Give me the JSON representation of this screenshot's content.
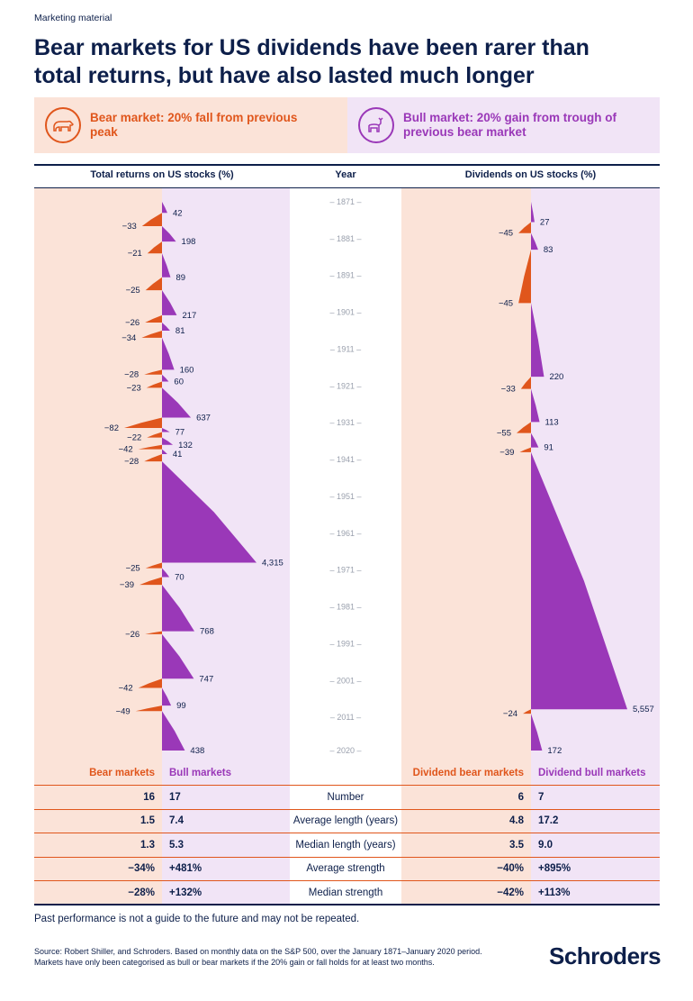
{
  "tag": "Marketing material",
  "title_line1": "Bear markets for US dividends have been rarer than",
  "title_line2": "total returns, but have also lasted much longer",
  "legend": {
    "bear": "Bear market: 20% fall from previous peak",
    "bull": "Bull market: 20% gain from trough of previous bear market"
  },
  "colors": {
    "bear": "#e0561c",
    "bull": "#9a38b8",
    "bear_bg": "#fbe3d8",
    "bull_bg": "#f1e4f6",
    "navy": "#0d1f4a"
  },
  "chart_data": {
    "type": "area",
    "year_axis_label": "Year",
    "year_ticks": [
      "1871",
      "1881",
      "1891",
      "1901",
      "1911",
      "1921",
      "1931",
      "1941",
      "1951",
      "1961",
      "1971",
      "1981",
      "1991",
      "2001",
      "2011",
      "2020"
    ],
    "panels": [
      {
        "name": "Total returns on US stocks (%)",
        "markets": [
          {
            "kind": "bull",
            "value": 42,
            "start": 1871.0,
            "end": 1874.0
          },
          {
            "kind": "bear",
            "value": -33,
            "start": 1874.0,
            "end": 1877.6
          },
          {
            "kind": "bull",
            "value": 198,
            "start": 1877.6,
            "end": 1881.8
          },
          {
            "kind": "bear",
            "value": -21,
            "start": 1881.8,
            "end": 1885.0
          },
          {
            "kind": "bull",
            "value": 89,
            "start": 1885.0,
            "end": 1891.5
          },
          {
            "kind": "bear",
            "value": -25,
            "start": 1891.5,
            "end": 1895.0
          },
          {
            "kind": "bull",
            "value": 217,
            "start": 1895.0,
            "end": 1901.8
          },
          {
            "kind": "bear",
            "value": -26,
            "start": 1901.8,
            "end": 1903.8
          },
          {
            "kind": "bull",
            "value": 81,
            "start": 1903.8,
            "end": 1906.0
          },
          {
            "kind": "bear",
            "value": -34,
            "start": 1906.0,
            "end": 1907.9
          },
          {
            "kind": "bull",
            "value": 160,
            "start": 1907.9,
            "end": 1916.6
          },
          {
            "kind": "bear",
            "value": -28,
            "start": 1916.6,
            "end": 1917.9
          },
          {
            "kind": "bull",
            "value": 60,
            "start": 1917.9,
            "end": 1919.8
          },
          {
            "kind": "bear",
            "value": -23,
            "start": 1919.8,
            "end": 1921.5
          },
          {
            "kind": "bull",
            "value": 637,
            "start": 1921.5,
            "end": 1929.6
          },
          {
            "kind": "bear",
            "value": -82,
            "start": 1929.6,
            "end": 1932.4
          },
          {
            "kind": "bull",
            "value": 77,
            "start": 1932.4,
            "end": 1933.5
          },
          {
            "kind": "bear",
            "value": -22,
            "start": 1933.5,
            "end": 1935.0
          },
          {
            "kind": "bull",
            "value": 132,
            "start": 1935.0,
            "end": 1937.0
          },
          {
            "kind": "bear",
            "value": -42,
            "start": 1937.0,
            "end": 1938.2
          },
          {
            "kind": "bull",
            "value": 41,
            "start": 1938.2,
            "end": 1939.5
          },
          {
            "kind": "bear",
            "value": -28,
            "start": 1939.5,
            "end": 1941.5
          },
          {
            "kind": "bull",
            "value": 4315,
            "start": 1941.5,
            "end": 1969.0
          },
          {
            "kind": "bear",
            "value": -25,
            "start": 1969.0,
            "end": 1970.5
          },
          {
            "kind": "bull",
            "value": 70,
            "start": 1970.5,
            "end": 1972.9
          },
          {
            "kind": "bear",
            "value": -39,
            "start": 1972.9,
            "end": 1975.0
          },
          {
            "kind": "bull",
            "value": 768,
            "start": 1975.0,
            "end": 1987.6
          },
          {
            "kind": "bear",
            "value": -26,
            "start": 1987.6,
            "end": 1988.4
          },
          {
            "kind": "bull",
            "value": 747,
            "start": 1988.4,
            "end": 2000.5
          },
          {
            "kind": "bear",
            "value": -42,
            "start": 2000.5,
            "end": 2003.0
          },
          {
            "kind": "bull",
            "value": 99,
            "start": 2003.0,
            "end": 2007.8
          },
          {
            "kind": "bear",
            "value": -49,
            "start": 2007.8,
            "end": 2009.3
          },
          {
            "kind": "bull",
            "value": 438,
            "start": 2009.3,
            "end": 2020.0
          }
        ]
      },
      {
        "name": "Dividends on US stocks (%)",
        "markets": [
          {
            "kind": "bull",
            "value": 27,
            "start": 1871.0,
            "end": 1876.5
          },
          {
            "kind": "bear",
            "value": -45,
            "start": 1876.5,
            "end": 1879.5
          },
          {
            "kind": "bull",
            "value": 83,
            "start": 1879.5,
            "end": 1884.0
          },
          {
            "kind": "bear",
            "value": -45,
            "start": 1884.0,
            "end": 1898.5
          },
          {
            "kind": "bull",
            "value": 220,
            "start": 1898.5,
            "end": 1918.5
          },
          {
            "kind": "bear",
            "value": -33,
            "start": 1918.5,
            "end": 1921.8
          },
          {
            "kind": "bull",
            "value": 113,
            "start": 1921.8,
            "end": 1930.8
          },
          {
            "kind": "bear",
            "value": -55,
            "start": 1930.8,
            "end": 1933.8
          },
          {
            "kind": "bull",
            "value": 91,
            "start": 1933.8,
            "end": 1937.7
          },
          {
            "kind": "bear",
            "value": -39,
            "start": 1937.7,
            "end": 1939.0
          },
          {
            "kind": "bull",
            "value": 5557,
            "start": 1939.0,
            "end": 2008.8
          },
          {
            "kind": "bear",
            "value": -24,
            "start": 2008.8,
            "end": 2010.0
          },
          {
            "kind": "bull",
            "value": 172,
            "start": 2010.0,
            "end": 2020.0
          }
        ]
      }
    ]
  },
  "stats": {
    "headers": {
      "bear": "Bear markets",
      "bull": "Bull markets",
      "div_bear": "Dividend bear markets",
      "div_bull": "Dividend bull markets"
    },
    "rows": [
      {
        "label": "Number",
        "bear": "16",
        "bull": "17",
        "div_bear": "6",
        "div_bull": "7"
      },
      {
        "label": "Average length (years)",
        "bear": "1.5",
        "bull": "7.4",
        "div_bear": "4.8",
        "div_bull": "17.2"
      },
      {
        "label": "Median length (years)",
        "bear": "1.3",
        "bull": "5.3",
        "div_bear": "3.5",
        "div_bull": "9.0"
      },
      {
        "label": "Average strength",
        "bear": "−34%",
        "bull": "+481%",
        "div_bear": "−40%",
        "div_bull": "+895%"
      },
      {
        "label": "Median strength",
        "bear": "−28%",
        "bull": "+132%",
        "div_bear": "−42%",
        "div_bull": "+113%"
      }
    ]
  },
  "footnote": "Past performance is not a guide to the future and may not be repeated.",
  "source_line1": "Source: Robert Shiller, and Schroders. Based on monthly data on the S&P 500, over the January 1871–January 2020 period.",
  "source_line2": "Markets have only been categorised as bull or bear markets if the 20% gain or fall holds for at least two months.",
  "logo": "Schroders"
}
